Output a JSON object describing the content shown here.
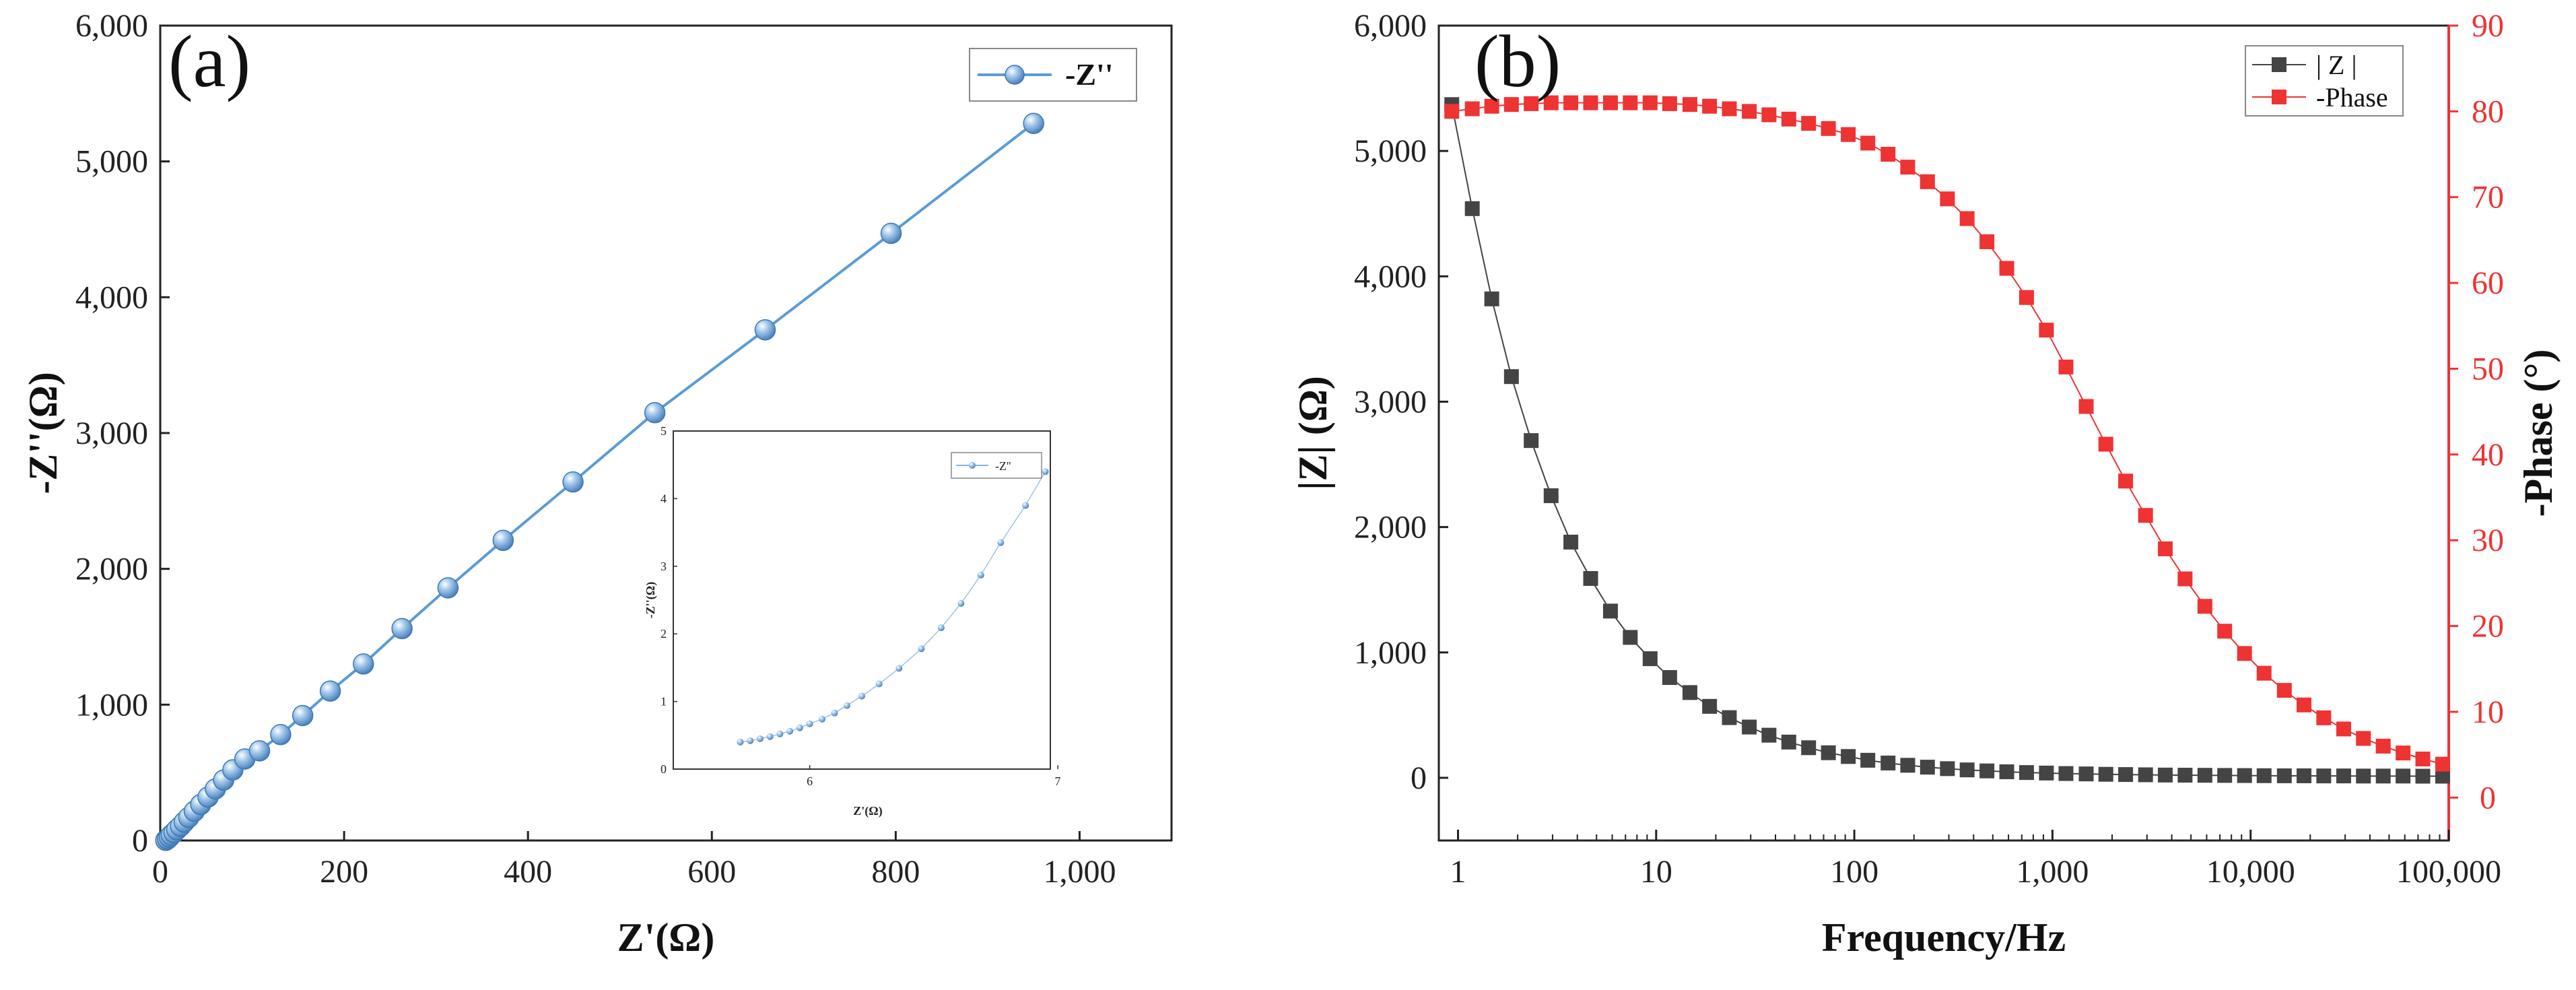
{
  "chart_data": [
    {
      "panel": "(a)",
      "type": "scatter",
      "title": "",
      "xlabel": "Z'(Ω)",
      "ylabel": "-Z''(Ω)",
      "xlim": [
        0,
        1100
      ],
      "ylim": [
        0,
        6000
      ],
      "xticks": [
        0,
        200,
        400,
        600,
        800,
        1000
      ],
      "xtick_labels": [
        "0",
        "200",
        "400",
        "600",
        "800",
        "1,000"
      ],
      "yticks": [
        0,
        1000,
        2000,
        3000,
        4000,
        5000,
        6000
      ],
      "ytick_labels": [
        "0",
        "1,000",
        "2,000",
        "3,000",
        "4,000",
        "5,000",
        "6,000"
      ],
      "legend": {
        "label": "-Z''",
        "position": "top-right"
      },
      "color": "#5b9bd5",
      "series": [
        {
          "name": "-Z''",
          "points": [
            [
              6,
              1
            ],
            [
              8,
              12
            ],
            [
              10,
              25
            ],
            [
              12,
              40
            ],
            [
              15,
              58
            ],
            [
              18,
              80
            ],
            [
              22,
              105
            ],
            [
              26,
              135
            ],
            [
              31,
              170
            ],
            [
              37,
              215
            ],
            [
              44,
              265
            ],
            [
              52,
              320
            ],
            [
              60,
              380
            ],
            [
              69,
              445
            ],
            [
              79,
              520
            ],
            [
              92,
              600
            ],
            [
              108,
              660
            ],
            [
              131,
              780
            ],
            [
              155,
              920
            ],
            [
              185,
              1100
            ],
            [
              221,
              1300
            ],
            [
              263,
              1560
            ],
            [
              313,
              1860
            ],
            [
              373,
              2210
            ],
            [
              449,
              2640
            ],
            [
              538,
              3150
            ],
            [
              658,
              3760
            ],
            [
              795,
              4470
            ],
            [
              950,
              5280
            ]
          ]
        }
      ],
      "inset": {
        "xlabel": "Z'(Ω)",
        "ylabel": "-Z''(Ω)",
        "xlim": [
          5.45,
          6.97
        ],
        "ylim": [
          0,
          5
        ],
        "xticks": [
          6,
          7
        ],
        "xtick_labels": [
          "6",
          "7"
        ],
        "yticks": [
          0,
          1,
          2,
          3,
          4,
          5
        ],
        "ytick_labels": [
          "0",
          "1",
          "2",
          "3",
          "4",
          "5"
        ],
        "legend": {
          "label": "-Z''",
          "position": "top-right"
        },
        "points": [
          [
            5.72,
            0.4
          ],
          [
            5.76,
            0.42
          ],
          [
            5.8,
            0.45
          ],
          [
            5.84,
            0.48
          ],
          [
            5.88,
            0.52
          ],
          [
            5.92,
            0.56
          ],
          [
            5.96,
            0.61
          ],
          [
            6.0,
            0.67
          ],
          [
            6.05,
            0.74
          ],
          [
            6.1,
            0.83
          ],
          [
            6.15,
            0.94
          ],
          [
            6.21,
            1.08
          ],
          [
            6.28,
            1.26
          ],
          [
            6.36,
            1.49
          ],
          [
            6.45,
            1.78
          ],
          [
            6.53,
            2.09
          ],
          [
            6.61,
            2.45
          ],
          [
            6.69,
            2.87
          ],
          [
            6.77,
            3.35
          ],
          [
            6.87,
            3.9
          ],
          [
            6.95,
            4.4
          ]
        ]
      }
    },
    {
      "panel": "(b)",
      "type": "scatter",
      "title": "",
      "xlabel": "Frequency/Hz",
      "ylabel": "|Z| (Ω)",
      "ylabel_right": "-Phase (°)",
      "xscale": "log",
      "xlim": [
        0.8,
        100000
      ],
      "ylim": [
        -500,
        6000
      ],
      "ylim_right": [
        -5,
        90
      ],
      "xticks": [
        1,
        10,
        100,
        1000,
        10000,
        100000
      ],
      "xtick_labels": [
        "1",
        "10",
        "100",
        "1,000",
        "10,000",
        "100,000"
      ],
      "yticks": [
        0,
        1000,
        2000,
        3000,
        4000,
        5000,
        6000
      ],
      "ytick_labels": [
        "0",
        "1,000",
        "2,000",
        "3,000",
        "4,000",
        "5,000",
        "6,000"
      ],
      "yticks_right": [
        0,
        10,
        20,
        30,
        40,
        50,
        60,
        70,
        80,
        90
      ],
      "ytick_labels_right": [
        "0",
        "10",
        "20",
        "30",
        "40",
        "50",
        "60",
        "70",
        "80",
        "90"
      ],
      "legend": {
        "entries": [
          "| Z |",
          "-Phase"
        ],
        "position": "top-right"
      },
      "series": [
        {
          "name": "| Z |",
          "axis": "left",
          "color": "#444444",
          "points": [
            [
              0.93,
              5370
            ],
            [
              1.18,
              4540
            ],
            [
              1.48,
              3820
            ],
            [
              1.86,
              3200
            ],
            [
              2.34,
              2690
            ],
            [
              2.95,
              2250
            ],
            [
              3.71,
              1880
            ],
            [
              4.67,
              1590
            ],
            [
              5.88,
              1330
            ],
            [
              7.4,
              1120
            ],
            [
              9.32,
              950
            ],
            [
              11.7,
              800
            ],
            [
              14.8,
              680
            ],
            [
              18.6,
              570
            ],
            [
              23.4,
              480
            ],
            [
              29.5,
              405
            ],
            [
              37.1,
              340
            ],
            [
              46.7,
              285
            ],
            [
              58.8,
              240
            ],
            [
              74,
              200
            ],
            [
              93.2,
              170
            ],
            [
              117,
              140
            ],
            [
              148,
              118
            ],
            [
              186,
              100
            ],
            [
              234,
              85
            ],
            [
              295,
              73
            ],
            [
              371,
              63
            ],
            [
              467,
              55
            ],
            [
              588,
              48
            ],
            [
              740,
              42
            ],
            [
              932,
              38
            ],
            [
              1170,
              34
            ],
            [
              1480,
              31
            ],
            [
              1860,
              28
            ],
            [
              2340,
              26
            ],
            [
              2950,
              24
            ],
            [
              3710,
              22
            ],
            [
              4670,
              21
            ],
            [
              5880,
              20
            ],
            [
              7400,
              19
            ],
            [
              9320,
              18
            ],
            [
              11700,
              17
            ],
            [
              14800,
              16
            ],
            [
              18600,
              16
            ],
            [
              23400,
              15
            ],
            [
              29500,
              15
            ],
            [
              37100,
              14
            ],
            [
              46700,
              14
            ],
            [
              58800,
              14
            ],
            [
              74000,
              13
            ],
            [
              93200,
              13
            ]
          ]
        },
        {
          "name": "-Phase",
          "axis": "right",
          "color": "#ee3333",
          "points": [
            [
              0.93,
              80.0
            ],
            [
              1.18,
              80.3
            ],
            [
              1.48,
              80.6
            ],
            [
              1.86,
              80.8
            ],
            [
              2.34,
              80.9
            ],
            [
              2.95,
              81.0
            ],
            [
              3.71,
              81.0
            ],
            [
              4.67,
              81.0
            ],
            [
              5.88,
              81.0
            ],
            [
              7.4,
              81.0
            ],
            [
              9.32,
              81.0
            ],
            [
              11.7,
              80.9
            ],
            [
              14.8,
              80.8
            ],
            [
              18.6,
              80.6
            ],
            [
              23.4,
              80.3
            ],
            [
              29.5,
              80.0
            ],
            [
              37.1,
              79.6
            ],
            [
              46.7,
              79.1
            ],
            [
              58.8,
              78.6
            ],
            [
              74,
              78.0
            ],
            [
              93.2,
              77.3
            ],
            [
              117,
              76.3
            ],
            [
              148,
              75.0
            ],
            [
              186,
              73.5
            ],
            [
              234,
              71.8
            ],
            [
              295,
              69.8
            ],
            [
              371,
              67.5
            ],
            [
              467,
              64.8
            ],
            [
              588,
              61.7
            ],
            [
              740,
              58.3
            ],
            [
              932,
              54.5
            ],
            [
              1170,
              50.2
            ],
            [
              1480,
              45.6
            ],
            [
              1860,
              41.2
            ],
            [
              2340,
              36.9
            ],
            [
              2950,
              32.9
            ],
            [
              3710,
              29.0
            ],
            [
              4670,
              25.5
            ],
            [
              5880,
              22.3
            ],
            [
              7400,
              19.4
            ],
            [
              9320,
              16.8
            ],
            [
              11700,
              14.5
            ],
            [
              14800,
              12.5
            ],
            [
              18600,
              10.8
            ],
            [
              23400,
              9.3
            ],
            [
              29500,
              8.0
            ],
            [
              37100,
              6.9
            ],
            [
              46700,
              6.0
            ],
            [
              58800,
              5.2
            ],
            [
              74000,
              4.5
            ],
            [
              93200,
              3.9
            ]
          ]
        }
      ]
    }
  ]
}
